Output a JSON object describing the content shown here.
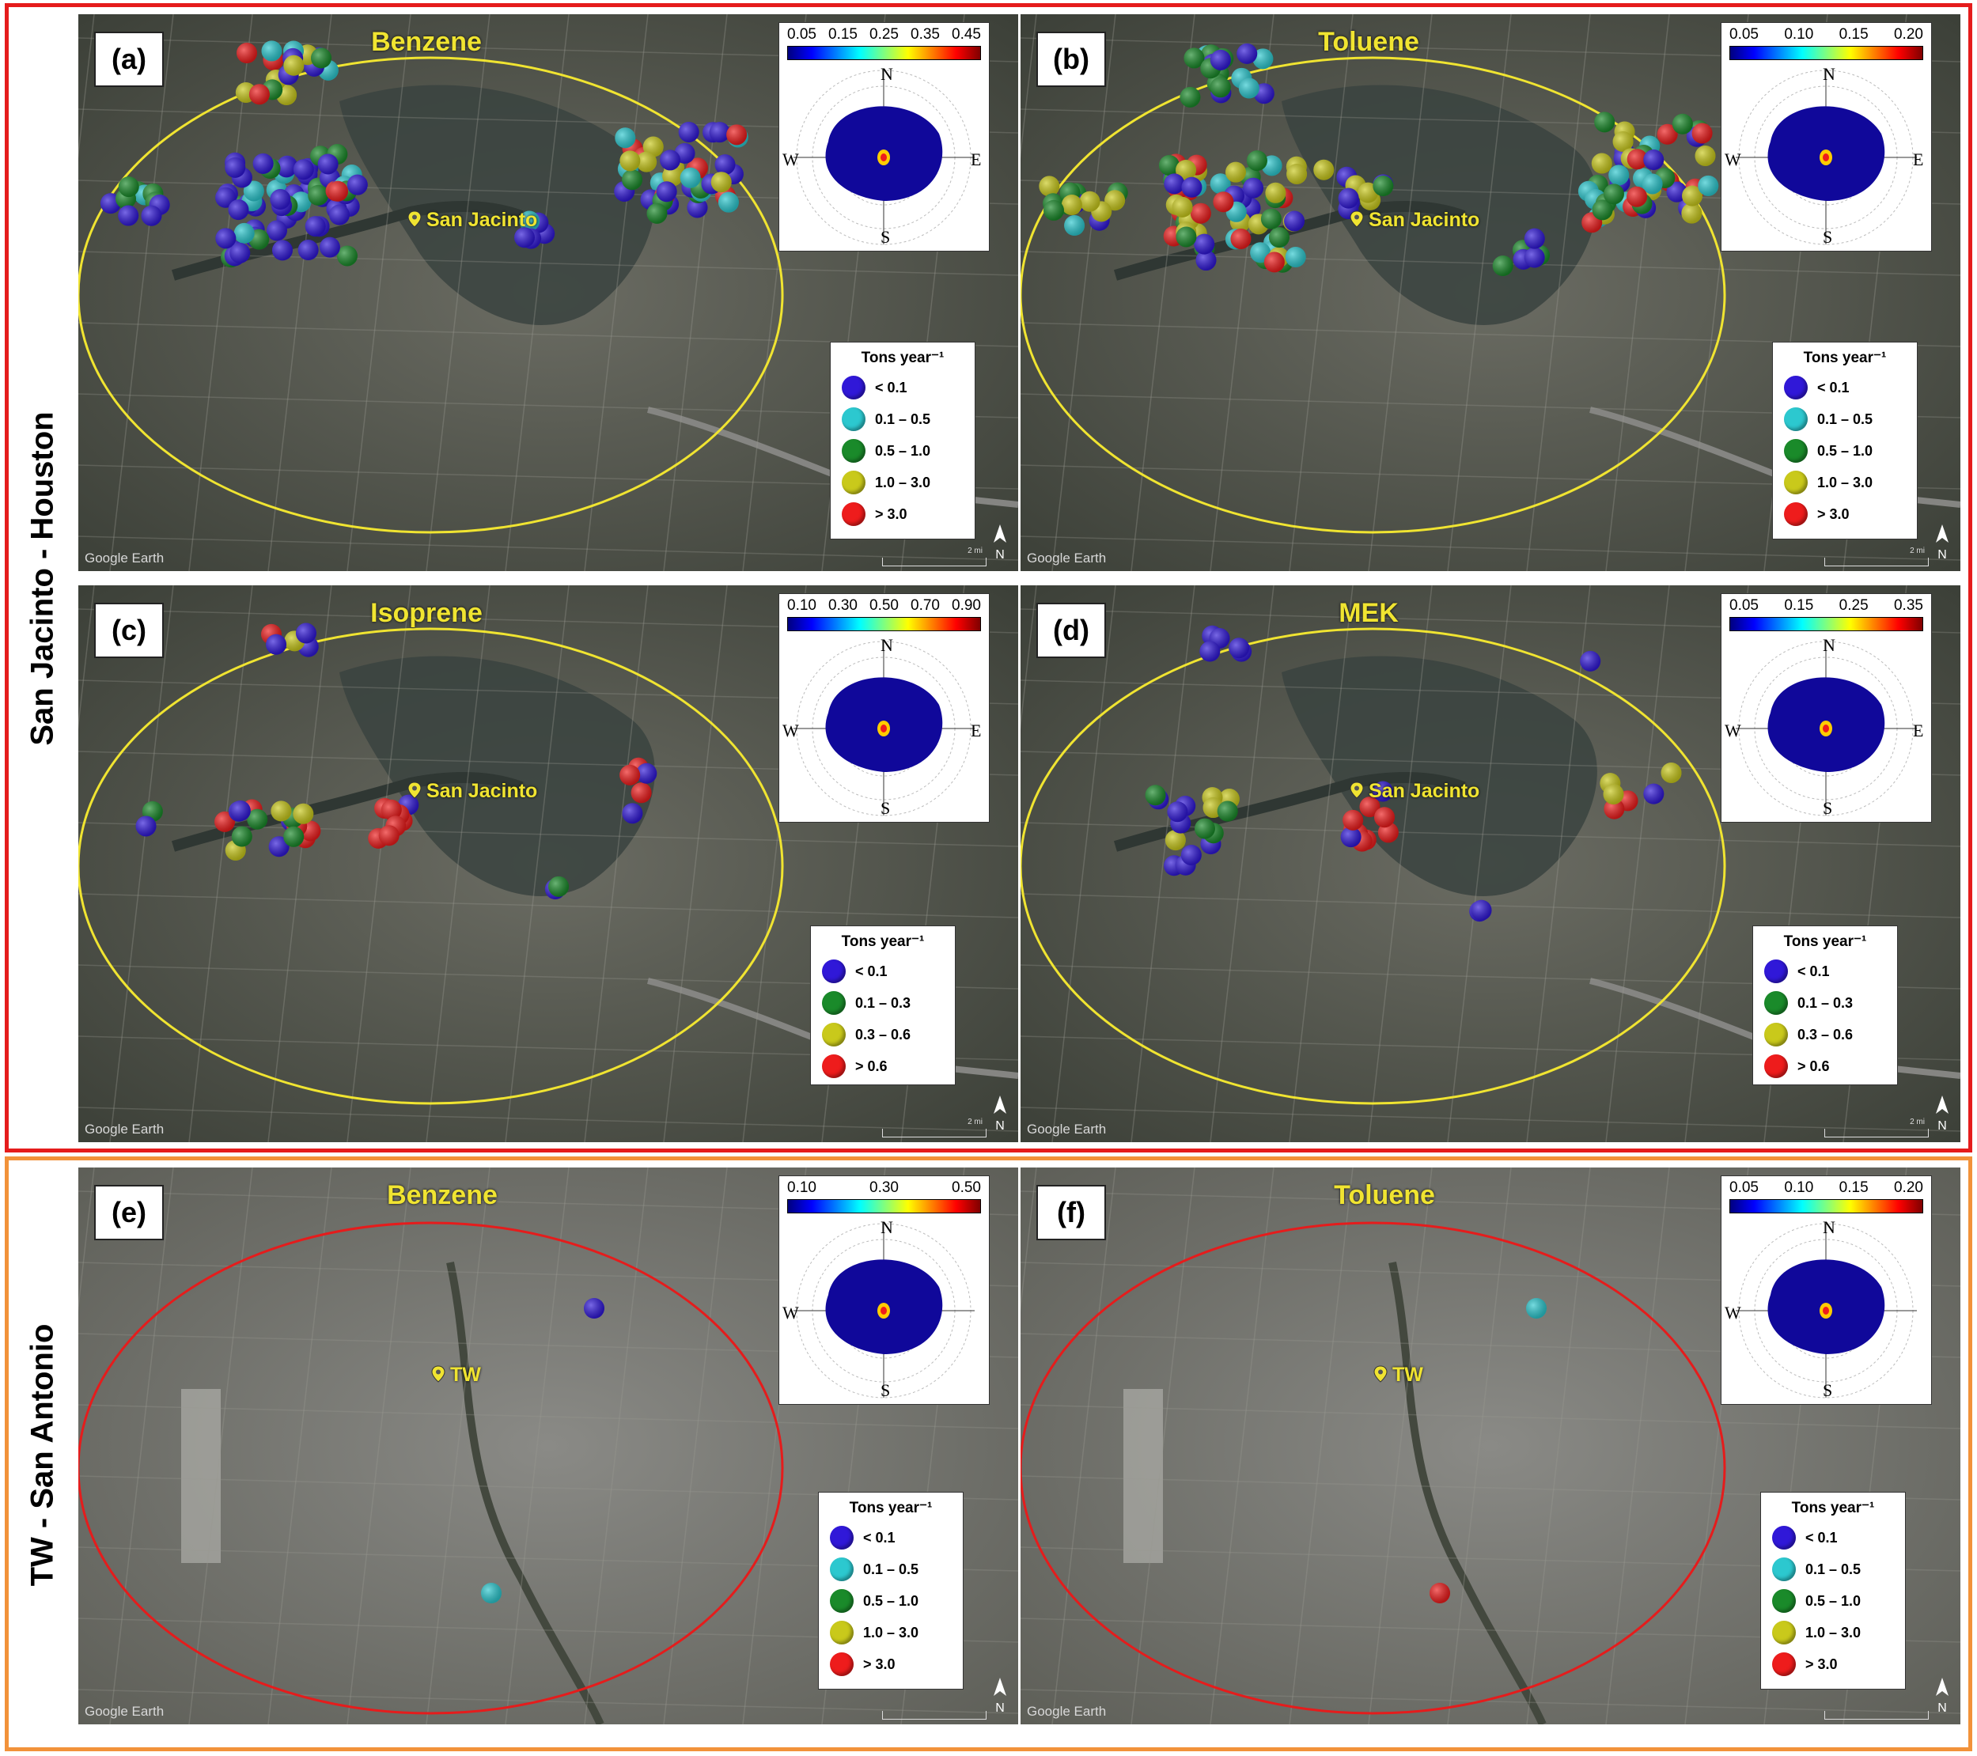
{
  "groups": [
    {
      "label": "San Jacinto - Houston",
      "color": "#e51c1c"
    },
    {
      "label": "TW - San Antonio",
      "color": "#f2923a"
    }
  ],
  "panels": [
    {
      "letter": "(a)",
      "compound": "Benzene",
      "site": "San Jacinto",
      "ellipse_color": "#f0e431",
      "colorbar_ticks": [
        "0.05",
        "0.15",
        "0.25",
        "0.35",
        "0.45"
      ],
      "compass": {
        "n": "N",
        "e": "E",
        "s": "S",
        "w": "W"
      },
      "legend_title": "Tons year⁻¹",
      "legend": [
        {
          "label": "< 0.1",
          "color": "#3018d8"
        },
        {
          "label": "0.1 – 0.5",
          "color": "#2cc8cf"
        },
        {
          "label": "0.5 – 1.0",
          "color": "#1a8a2a"
        },
        {
          "label": "1.0 – 3.0",
          "color": "#c9c91b"
        },
        {
          "label": "> 3.0",
          "color": "#ee1c1c"
        }
      ],
      "watermark": "Google Earth",
      "scale_text": "2 mi",
      "north_text": "N"
    },
    {
      "letter": "(b)",
      "compound": "Toluene",
      "site": "San Jacinto",
      "ellipse_color": "#f0e431",
      "colorbar_ticks": [
        "0.05",
        "0.10",
        "0.15",
        "0.20"
      ],
      "compass": {
        "n": "N",
        "e": "E",
        "s": "S",
        "w": "W"
      },
      "legend_title": "Tons year⁻¹",
      "legend": [
        {
          "label": "< 0.1",
          "color": "#3018d8"
        },
        {
          "label": "0.1 – 0.5",
          "color": "#2cc8cf"
        },
        {
          "label": "0.5 – 1.0",
          "color": "#1a8a2a"
        },
        {
          "label": "1.0 – 3.0",
          "color": "#c9c91b"
        },
        {
          "label": "> 3.0",
          "color": "#ee1c1c"
        }
      ],
      "watermark": "Google Earth",
      "scale_text": "2 mi",
      "north_text": "N"
    },
    {
      "letter": "(c)",
      "compound": "Isoprene",
      "site": "San Jacinto",
      "ellipse_color": "#f0e431",
      "colorbar_ticks": [
        "0.10",
        "0.30",
        "0.50",
        "0.70",
        "0.90"
      ],
      "compass": {
        "n": "N",
        "e": "E",
        "s": "S",
        "w": "W"
      },
      "legend_title": "Tons year⁻¹",
      "legend": [
        {
          "label": "< 0.1",
          "color": "#3018d8"
        },
        {
          "label": "0.1 – 0.3",
          "color": "#1a8a2a"
        },
        {
          "label": "0.3 – 0.6",
          "color": "#c9c91b"
        },
        {
          "label": "> 0.6",
          "color": "#ee1c1c"
        }
      ],
      "watermark": "Google Earth",
      "scale_text": "2 mi",
      "north_text": "N"
    },
    {
      "letter": "(d)",
      "compound": "MEK",
      "site": "San Jacinto",
      "ellipse_color": "#f0e431",
      "colorbar_ticks": [
        "0.05",
        "0.15",
        "0.25",
        "0.35"
      ],
      "compass": {
        "n": "N",
        "e": "E",
        "s": "S",
        "w": "W"
      },
      "legend_title": "Tons year⁻¹",
      "legend": [
        {
          "label": "< 0.1",
          "color": "#3018d8"
        },
        {
          "label": "0.1 – 0.3",
          "color": "#1a8a2a"
        },
        {
          "label": "0.3 – 0.6",
          "color": "#c9c91b"
        },
        {
          "label": "> 0.6",
          "color": "#ee1c1c"
        }
      ],
      "watermark": "Google Earth",
      "scale_text": "2 mi",
      "north_text": "N"
    },
    {
      "letter": "(e)",
      "compound": "Benzene",
      "site": "TW",
      "ellipse_color": "#e51c1c",
      "colorbar_ticks": [
        "0.10",
        "0.30",
        "0.50"
      ],
      "compass": {
        "n": "N",
        "e": "",
        "s": "S",
        "w": "W"
      },
      "legend_title": "Tons year⁻¹",
      "legend": [
        {
          "label": "< 0.1",
          "color": "#3018d8"
        },
        {
          "label": "0.1 – 0.5",
          "color": "#2cc8cf"
        },
        {
          "label": "0.5 – 1.0",
          "color": "#1a8a2a"
        },
        {
          "label": "1.0 – 3.0",
          "color": "#c9c91b"
        },
        {
          "label": "> 3.0",
          "color": "#ee1c1c"
        }
      ],
      "watermark": "Google Earth",
      "scale_text": "",
      "north_text": "N"
    },
    {
      "letter": "(f)",
      "compound": "Toluene",
      "site": "TW",
      "ellipse_color": "#e51c1c",
      "colorbar_ticks": [
        "0.05",
        "0.10",
        "0.15",
        "0.20"
      ],
      "compass": {
        "n": "N",
        "e": "",
        "s": "S",
        "w": "W"
      },
      "legend_title": "Tons year⁻¹",
      "legend": [
        {
          "label": "< 0.1",
          "color": "#3018d8"
        },
        {
          "label": "0.1 – 0.5",
          "color": "#2cc8cf"
        },
        {
          "label": "0.5 – 1.0",
          "color": "#1a8a2a"
        },
        {
          "label": "1.0 – 3.0",
          "color": "#c9c91b"
        },
        {
          "label": "> 3.0",
          "color": "#ee1c1c"
        }
      ],
      "watermark": "Google Earth",
      "scale_text": "",
      "north_text": "N"
    }
  ]
}
